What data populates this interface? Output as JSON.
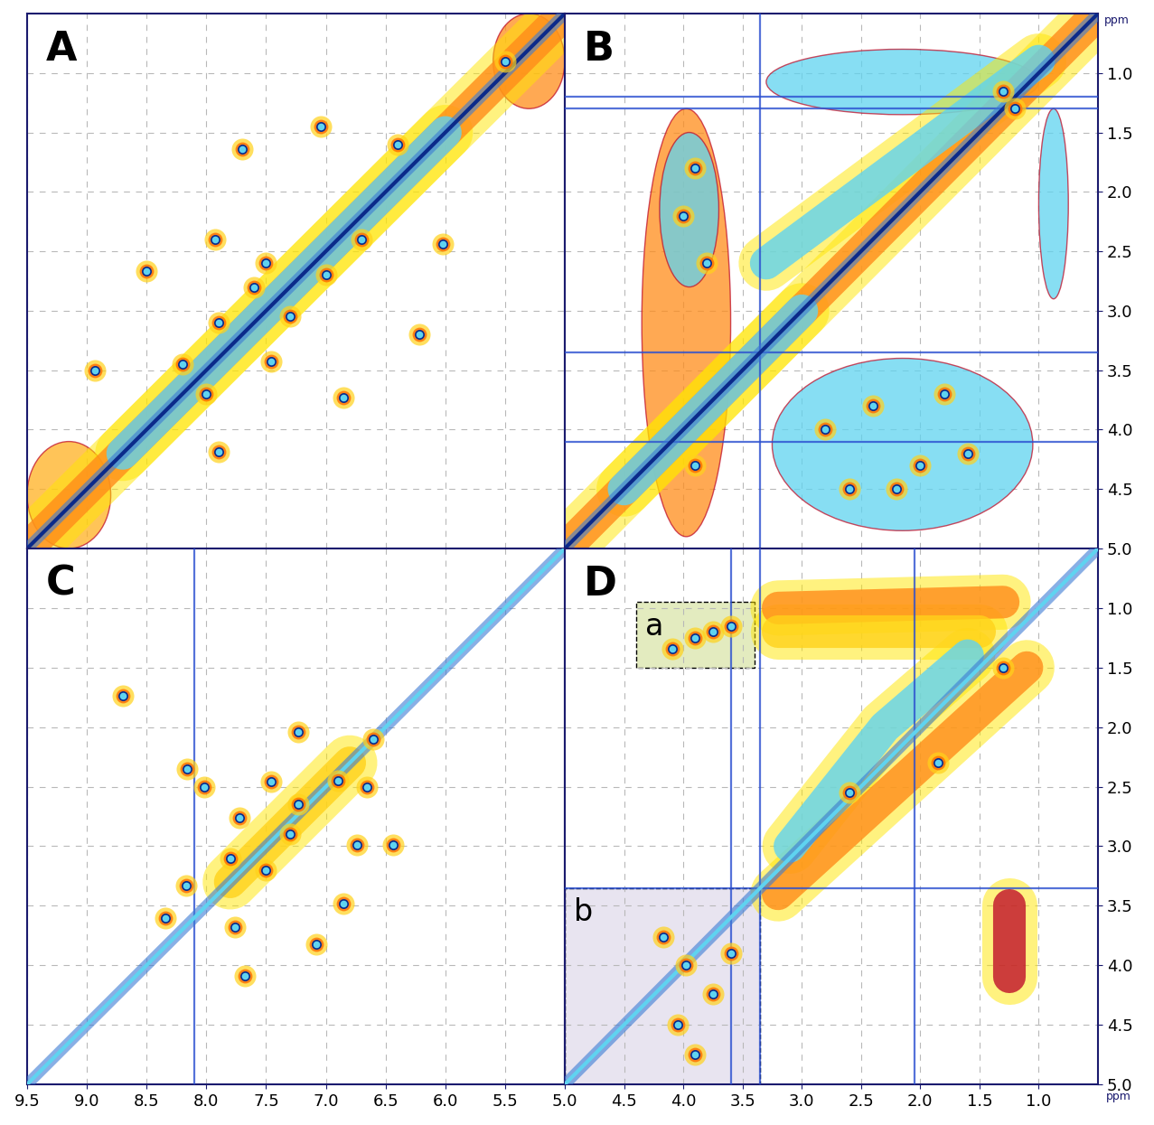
{
  "chart_data": [
    {
      "type": "contour",
      "title": "A",
      "xlim": [
        9.5,
        5.0
      ],
      "ylim": [
        9.5,
        5.0
      ],
      "xticks": [
        9.5,
        9.0,
        8.5,
        8.0,
        7.5,
        7.0,
        6.5,
        6.0,
        5.5
      ],
      "yticks": [
        9.0,
        8.5,
        8.0,
        7.5,
        7.0,
        6.5,
        6.0,
        5.5
      ],
      "grid": true,
      "tick_labels": false,
      "diagonal": {
        "x": [
          9.5,
          5.0
        ],
        "y": [
          9.5,
          5.0
        ],
        "color": "#0b2a8a"
      },
      "bands": [
        {
          "x": [
            9.5,
            5.0
          ],
          "y": [
            9.5,
            5.0
          ],
          "color": "#ff8c1a"
        },
        {
          "x": [
            8.7,
            6.0
          ],
          "y": [
            8.7,
            6.0
          ],
          "color": "#5fd3f0"
        }
      ],
      "regions": [
        {
          "x": [
            9.5,
            8.8
          ],
          "y": [
            8.6,
            9.5
          ],
          "color": "#ffb020"
        },
        {
          "x": [
            5.6,
            5.0
          ],
          "y": [
            5.0,
            5.8
          ],
          "color": "#ff8c1a"
        }
      ],
      "peaks": {
        "x": [
          7.04,
          7.7,
          6.02,
          6.22,
          7.93,
          8.5,
          8.93,
          7.9,
          6.85,
          7.46,
          8.2,
          7.9,
          7.6,
          7.3,
          7.0,
          6.7,
          8.0,
          7.5,
          6.4,
          5.5
        ],
        "y": [
          5.95,
          6.14,
          6.94,
          7.7,
          6.9,
          7.17,
          8.0,
          8.69,
          8.23,
          7.93,
          7.95,
          7.6,
          7.3,
          7.55,
          7.2,
          6.9,
          8.2,
          7.1,
          6.1,
          5.4
        ]
      }
    },
    {
      "type": "contour",
      "title": "B",
      "xlim": [
        5.0,
        0.5
      ],
      "ylim": [
        5.0,
        0.5
      ],
      "xticks": [
        4.5,
        4.0,
        3.5,
        3.0,
        2.5,
        2.0,
        1.5,
        1.0
      ],
      "yticks": [
        1.0,
        1.5,
        2.0,
        2.5,
        3.0,
        3.5,
        4.0,
        4.5,
        5.0
      ],
      "ylabel": "ppm",
      "grid": true,
      "tick_labels": "y",
      "diagonal": {
        "x": [
          5.0,
          0.5
        ],
        "y": [
          5.0,
          0.5
        ],
        "color": "#0b2a8a"
      },
      "bands": [
        {
          "x": [
            4.95,
            0.6
          ],
          "y": [
            4.95,
            0.6
          ],
          "color": "#ff8c1a"
        },
        {
          "x": [
            3.3,
            1.0
          ],
          "y": [
            2.6,
            0.9
          ],
          "color": "#5fd3f0"
        },
        {
          "x": [
            4.5,
            3.0
          ],
          "y": [
            4.5,
            3.0
          ],
          "color": "#5fd3f0"
        }
      ],
      "regions": [
        {
          "x": [
            4.35,
            3.6
          ],
          "y": [
            1.3,
            4.9
          ],
          "color": "#ff8c1a"
        },
        {
          "x": [
            4.2,
            3.7
          ],
          "y": [
            1.5,
            2.8
          ],
          "color": "#5fd3f0"
        },
        {
          "x": [
            3.3,
            1.0
          ],
          "y": [
            0.8,
            1.35
          ],
          "color": "#5fd3f0"
        },
        {
          "x": [
            3.25,
            1.05
          ],
          "y": [
            3.4,
            4.85
          ],
          "color": "#5fd3f0"
        },
        {
          "x": [
            1.0,
            0.75
          ],
          "y": [
            1.3,
            2.9
          ],
          "color": "#5fd3f0"
        }
      ],
      "noise_lines": {
        "x": [
          3.35
        ],
        "y": [
          3.35,
          1.2,
          1.3,
          4.1
        ]
      },
      "peaks": {
        "x": [
          3.9,
          4.0,
          3.8,
          2.8,
          2.4,
          2.0,
          1.6,
          2.6,
          2.2,
          1.8,
          3.9,
          1.2,
          1.3
        ],
        "y": [
          1.8,
          2.2,
          2.6,
          4.0,
          3.8,
          4.3,
          4.2,
          4.5,
          4.5,
          3.7,
          4.3,
          1.3,
          1.15
        ]
      }
    },
    {
      "type": "contour",
      "title": "C",
      "xlim": [
        9.5,
        5.0
      ],
      "ylim": [
        9.5,
        5.0
      ],
      "xticks": [
        9.5,
        9.0,
        8.5,
        8.0,
        7.5,
        7.0,
        6.5,
        6.0,
        5.5
      ],
      "yticks": [
        9.0,
        8.5,
        8.0,
        7.5,
        7.0,
        6.5,
        6.0,
        5.5
      ],
      "grid": true,
      "tick_labels": "x",
      "diagonal": {
        "x": [
          9.5,
          5.0
        ],
        "y": [
          9.5,
          5.0
        ],
        "color": "#5fd3f0"
      },
      "bands": [
        {
          "x": [
            7.8,
            6.8
          ],
          "y": [
            7.8,
            6.8
          ],
          "color": "#ffd21a"
        }
      ],
      "noise_lines": {
        "x": [
          8.1
        ],
        "y": []
      },
      "peaks": {
        "x": [
          8.7,
          8.16,
          8.02,
          7.72,
          7.46,
          7.23,
          6.66,
          6.74,
          6.44,
          7.23,
          8.17,
          7.76,
          7.68,
          6.85,
          7.08,
          8.34,
          7.5,
          7.3,
          7.8,
          6.6,
          6.9
        ],
        "y": [
          6.24,
          6.85,
          7.0,
          7.26,
          6.96,
          7.15,
          7.0,
          7.49,
          7.49,
          6.54,
          7.83,
          8.18,
          8.59,
          7.98,
          8.32,
          8.1,
          7.7,
          7.4,
          7.6,
          6.6,
          6.95
        ]
      }
    },
    {
      "type": "contour",
      "title": "D",
      "xlim": [
        5.0,
        0.5
      ],
      "ylim": [
        5.0,
        0.5
      ],
      "xticks": [
        5.0,
        4.5,
        4.0,
        3.5,
        3.0,
        2.5,
        2.0,
        1.5,
        1.0
      ],
      "yticks": [
        1.0,
        1.5,
        2.0,
        2.5,
        3.0,
        3.5,
        4.0,
        4.5,
        5.0
      ],
      "xlabel": "ppm",
      "grid": true,
      "tick_labels": true,
      "boxes": [
        {
          "label": "a",
          "x": [
            4.4,
            3.4
          ],
          "y": [
            0.95,
            1.5
          ],
          "color": "#e3ebbf"
        },
        {
          "label": "b",
          "x": [
            5.0,
            3.35
          ],
          "y": [
            3.35,
            5.0
          ],
          "color": "#e8e4f0"
        }
      ],
      "diagonal": {
        "x": [
          5.0,
          0.5
        ],
        "y": [
          5.0,
          0.5
        ],
        "color": "#5fd3f0"
      },
      "bands": [
        {
          "x": [
            3.2,
            1.3
          ],
          "y": [
            1.0,
            0.95
          ],
          "color": "#ff8c1a"
        },
        {
          "x": [
            3.2,
            1.5
          ],
          "y": [
            1.2,
            1.2
          ],
          "color": "#ffd21a"
        },
        {
          "x": [
            3.2,
            1.1
          ],
          "y": [
            3.4,
            1.5
          ],
          "color": "#ff8c1a"
        },
        {
          "x": [
            3.1,
            2.3,
            1.6
          ],
          "y": [
            3.0,
            2.0,
            1.4
          ],
          "color": "#5fd3f0"
        },
        {
          "x": [
            1.25,
            1.25
          ],
          "y": [
            3.5,
            4.1
          ],
          "color": "#c0102a"
        }
      ],
      "noise_lines": {
        "x": [
          3.35,
          2.05,
          3.6
        ],
        "y": [
          3.35
        ]
      },
      "peaks": {
        "x": [
          3.75,
          4.09,
          3.9,
          3.6,
          4.17,
          3.98,
          3.75,
          4.05,
          3.9,
          3.6,
          2.6,
          1.85,
          1.3
        ],
        "y": [
          1.2,
          1.34,
          1.25,
          1.15,
          3.76,
          4.0,
          4.24,
          4.5,
          4.75,
          3.9,
          2.55,
          2.3,
          1.5
        ]
      }
    }
  ]
}
